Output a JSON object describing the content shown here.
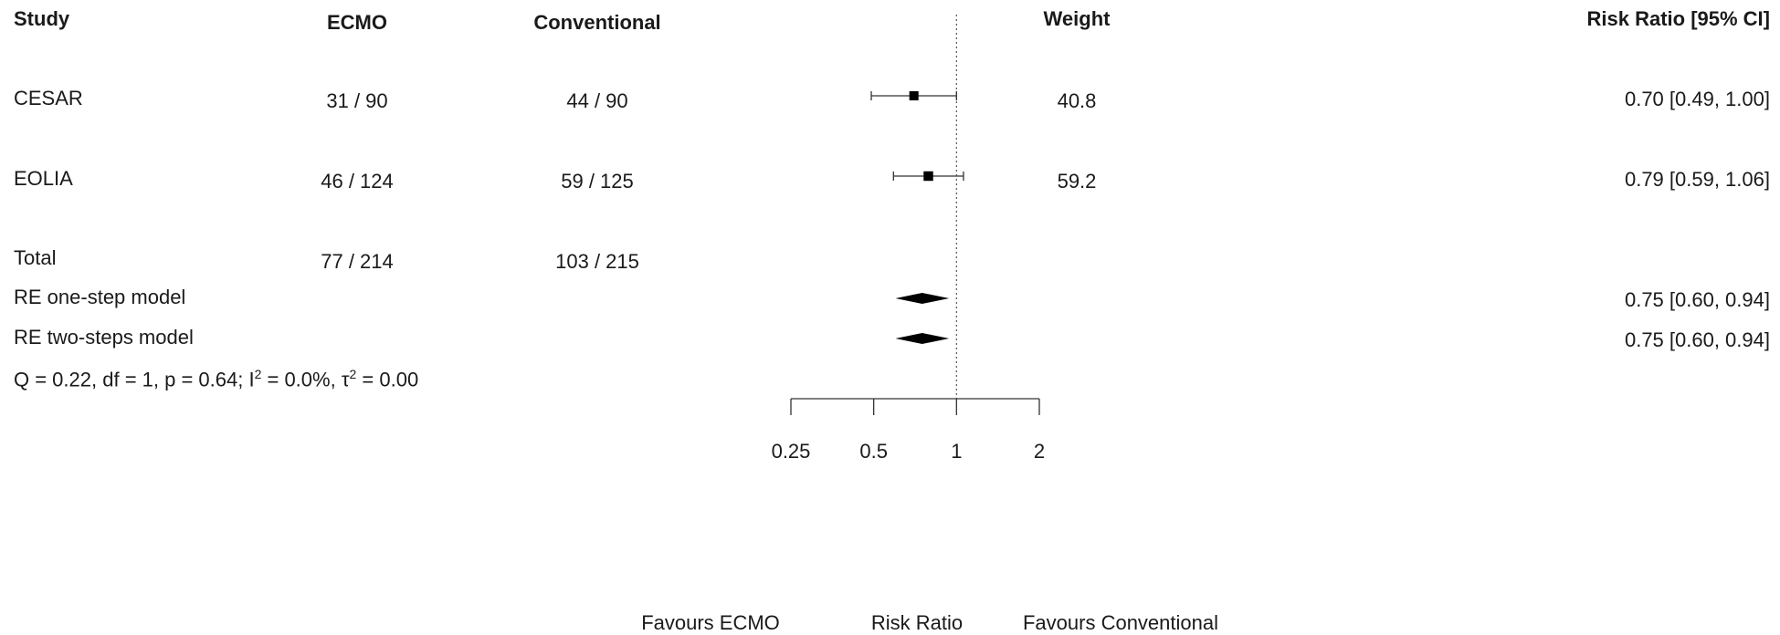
{
  "headers": {
    "study": "Study",
    "ecmo": "ECMO",
    "conventional": "Conventional",
    "weight": "Weight",
    "rr": "Risk Ratio [95% CI]"
  },
  "studies": [
    {
      "name": "CESAR",
      "ecmo": "31 / 90",
      "conv": "44 / 90",
      "weight": "40.8",
      "rr_text": "0.70 [0.49, 1.00]"
    },
    {
      "name": "EOLIA",
      "ecmo": "46 / 124",
      "conv": "59 / 125",
      "weight": "59.2",
      "rr_text": "0.79 [0.59, 1.06]"
    }
  ],
  "total": {
    "label": "Total",
    "ecmo": "77 / 214",
    "conv": "103 / 215"
  },
  "models": [
    {
      "label": "RE one-step model",
      "rr_text": "0.75 [0.60, 0.94]"
    },
    {
      "label": "RE two-steps model",
      "rr_text": "0.75 [0.60, 0.94]"
    }
  ],
  "heterogeneity": {
    "prefix": "Q = 0.22, df = 1, p = 0.64; I",
    "i2_sup": "2",
    "mid": " = 0.0%, τ",
    "tau_sup": "2",
    "suffix": " = 0.00"
  },
  "axis_labels": {
    "left": "Favours ECMO",
    "center": "Risk Ratio",
    "right": "Favours Conventional"
  },
  "chart_data": {
    "type": "forest",
    "scale": "log2",
    "xlabel": "Risk Ratio",
    "xlim": [
      0.25,
      2
    ],
    "reference_line": 1,
    "ticks": [
      {
        "value": 0.25,
        "label": "0.25"
      },
      {
        "value": 0.5,
        "label": "0.5"
      },
      {
        "value": 1,
        "label": "1"
      },
      {
        "value": 2,
        "label": "2"
      }
    ],
    "studies": [
      {
        "name": "CESAR",
        "est": 0.7,
        "lo": 0.49,
        "hi": 1.0,
        "weight": 40.8
      },
      {
        "name": "EOLIA",
        "est": 0.79,
        "lo": 0.59,
        "hi": 1.06,
        "weight": 59.2
      }
    ],
    "summaries": [
      {
        "name": "RE one-step model",
        "est": 0.75,
        "lo": 0.6,
        "hi": 0.94
      },
      {
        "name": "RE two-steps model",
        "est": 0.75,
        "lo": 0.6,
        "hi": 0.94
      }
    ]
  }
}
